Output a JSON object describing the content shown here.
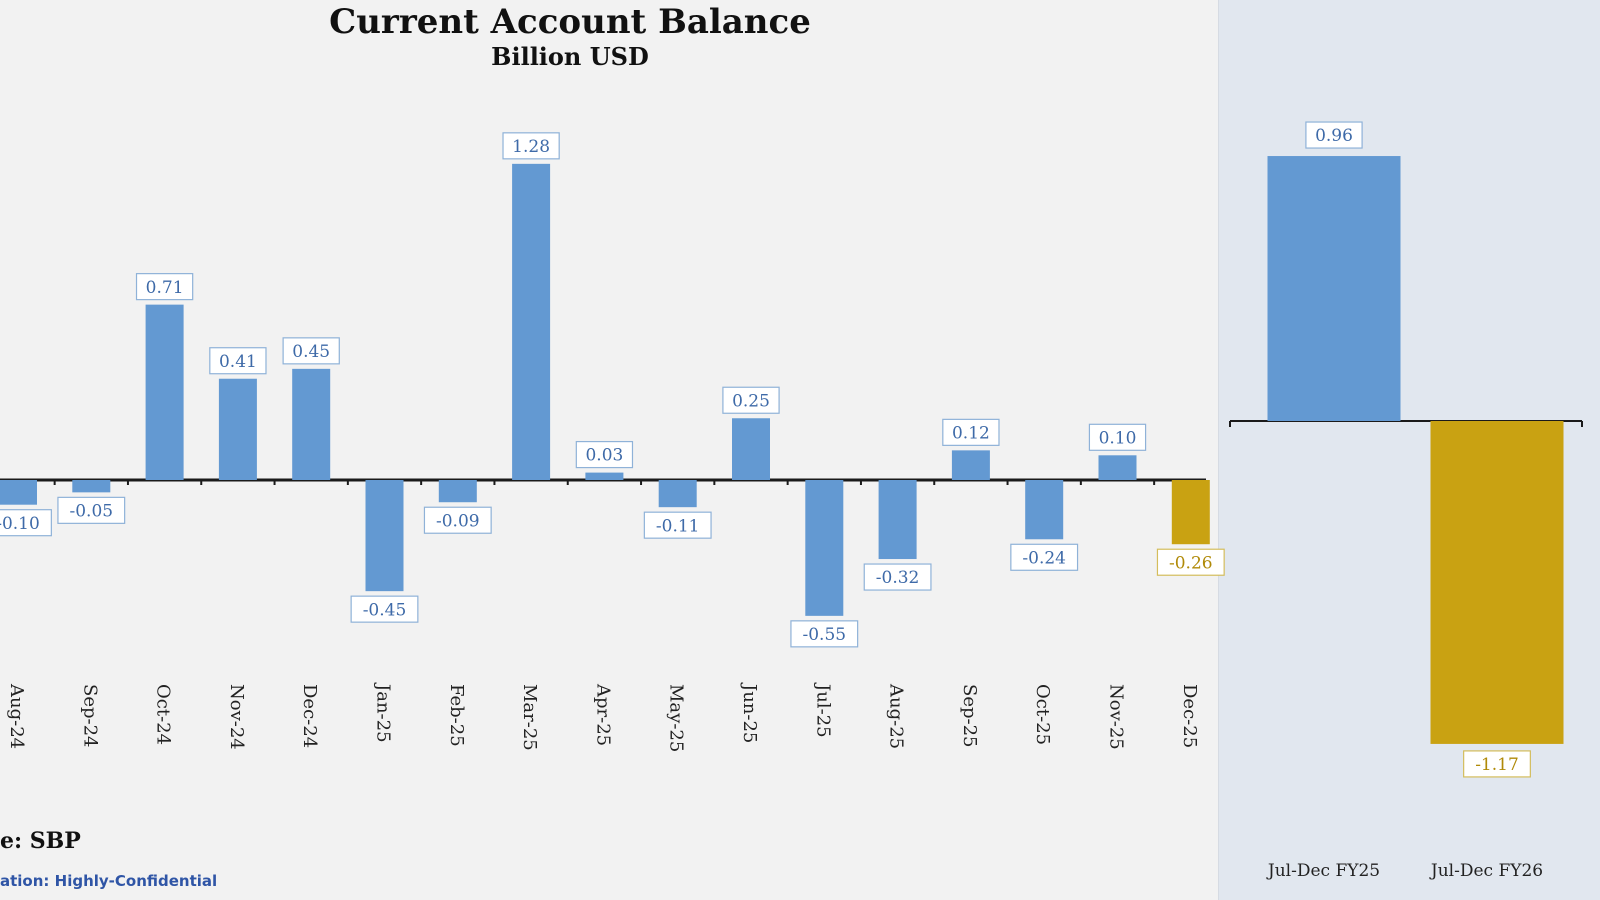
{
  "colors": {
    "blue": "#6399d2",
    "gold": "#c9a212",
    "axis": "#1a1a1a",
    "label_blue": "#3e6aa8",
    "label_gold": "#b08a08"
  },
  "footer": {
    "source": "e: SBP",
    "classification": "ation: Highly-Confidential"
  },
  "chart_data": [
    {
      "type": "bar",
      "title": "Current Account Balance",
      "subtitle": "Billion USD",
      "categories": [
        "Aug-24",
        "Sep-24",
        "Oct-24",
        "Nov-24",
        "Dec-24",
        "Jan-25",
        "Feb-25",
        "Mar-25",
        "Apr-25",
        "May-25",
        "Jun-25",
        "Jul-25",
        "Aug-25",
        "Sep-25",
        "Oct-25",
        "Nov-25",
        "Dec-25"
      ],
      "values": [
        -0.1,
        -0.05,
        0.71,
        0.41,
        0.45,
        -0.45,
        -0.09,
        1.28,
        0.03,
        -0.11,
        0.25,
        -0.55,
        -0.32,
        0.12,
        -0.24,
        0.1,
        -0.26
      ],
      "labels": [
        "-0.10",
        "-0.05",
        "0.71",
        "0.41",
        "0.45",
        "-0.45",
        "-0.09",
        "1.28",
        "0.03",
        "-0.11",
        "0.25",
        "-0.55",
        "-0.32",
        "0.12",
        "-0.24",
        "0.10",
        "-0.26"
      ],
      "highlight": [
        "Dec-25"
      ],
      "grid": false,
      "legend": "none"
    },
    {
      "type": "bar",
      "categories": [
        "Jul-Dec FY25",
        "Jul-Dec FY26"
      ],
      "values": [
        0.96,
        -1.17
      ],
      "labels": [
        "0.96",
        "-1.17"
      ],
      "highlight": [
        "Jul-Dec FY26"
      ],
      "grid": false,
      "legend": "none"
    }
  ]
}
